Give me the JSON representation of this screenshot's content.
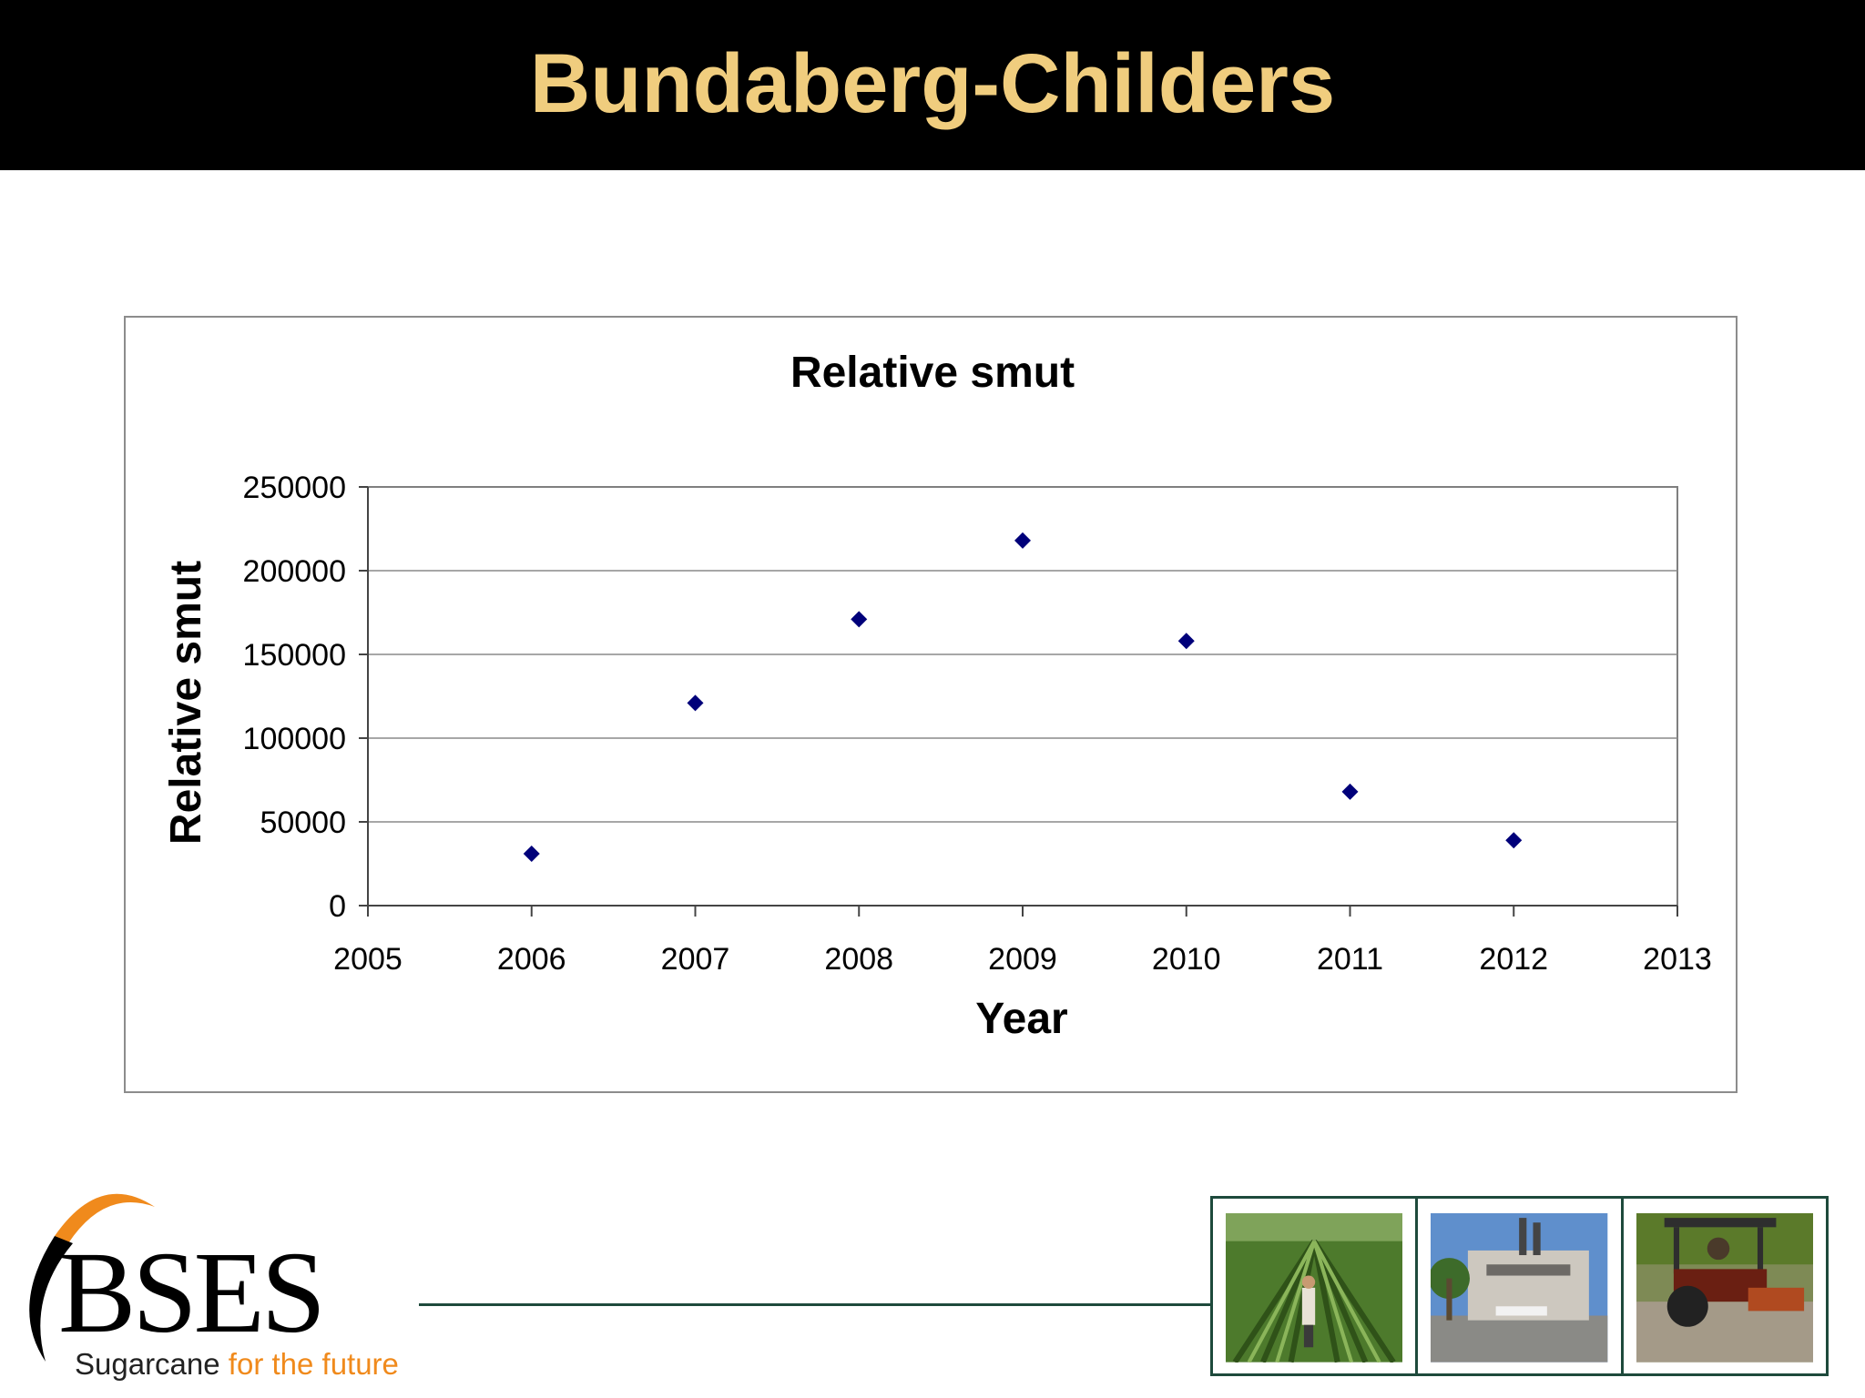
{
  "slide": {
    "title": "Bundaberg-Childers"
  },
  "branding": {
    "logo_text": "BSES",
    "tagline_main": "Sugarcane ",
    "tagline_accent": "for the future",
    "accent_color": "#f08a1c",
    "title_color": "#f0cd7e",
    "frame_color": "#1e4a3c"
  },
  "photos": [
    {
      "icon": "sugarcane-field-photo"
    },
    {
      "icon": "sugar-mill-photo"
    },
    {
      "icon": "tractor-harvest-photo"
    }
  ],
  "chart_data": {
    "type": "scatter",
    "title": "Relative smut",
    "xlabel": "Year",
    "ylabel": "Relative smut",
    "xlim": [
      2005,
      2013
    ],
    "ylim": [
      0,
      250000
    ],
    "xticks": [
      "2005",
      "2006",
      "2007",
      "2008",
      "2009",
      "2010",
      "2011",
      "2012",
      "2013"
    ],
    "yticks": [
      "0",
      "50000",
      "100000",
      "150000",
      "200000",
      "250000"
    ],
    "grid": "horizontal",
    "marker_color": "#00007a",
    "series": [
      {
        "x": [
          2006,
          2007,
          2008,
          2009,
          2010,
          2011,
          2012
        ],
        "y": [
          31000,
          121000,
          171000,
          218000,
          158000,
          68000,
          39000
        ]
      }
    ]
  }
}
